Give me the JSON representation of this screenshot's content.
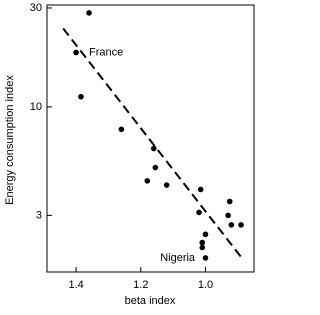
{
  "chart_data": {
    "type": "scatter",
    "log_y": true,
    "x_label": "beta index",
    "y_label": "Energy consumption index",
    "xlim": [
      1.49,
      0.85
    ],
    "ylim": [
      1.6,
      31
    ],
    "xticks": [
      1.4,
      1.2,
      {
        "value": 1,
        "label": "1.0"
      }
    ],
    "yticks": [
      3,
      10,
      30
    ],
    "series": [
      {
        "color": "#000000",
        "x": [
          1.36,
          1.4,
          1.385,
          1.26,
          1.16,
          1.155,
          1.18,
          1.12,
          1.015,
          1.02,
          1.0,
          1.01,
          1.01,
          1.0,
          0.925,
          0.93,
          0.92,
          0.89
        ],
        "y": [
          28.4,
          18.3,
          11.2,
          7.8,
          6.3,
          5.1,
          4.4,
          4.2,
          4.0,
          3.1,
          2.43,
          2.22,
          2.1,
          1.87,
          3.5,
          3.0,
          2.7,
          2.7
        ]
      }
    ],
    "trend_line": {
      "x": [
        1.44,
        0.89
      ],
      "y": [
        23.9,
        1.89
      ]
    },
    "annotations": [
      {
        "text": "France",
        "x": 1.36,
        "y": 18.3
      },
      {
        "text": "Nigeria",
        "x": 1.14,
        "y": 1.87
      }
    ]
  }
}
